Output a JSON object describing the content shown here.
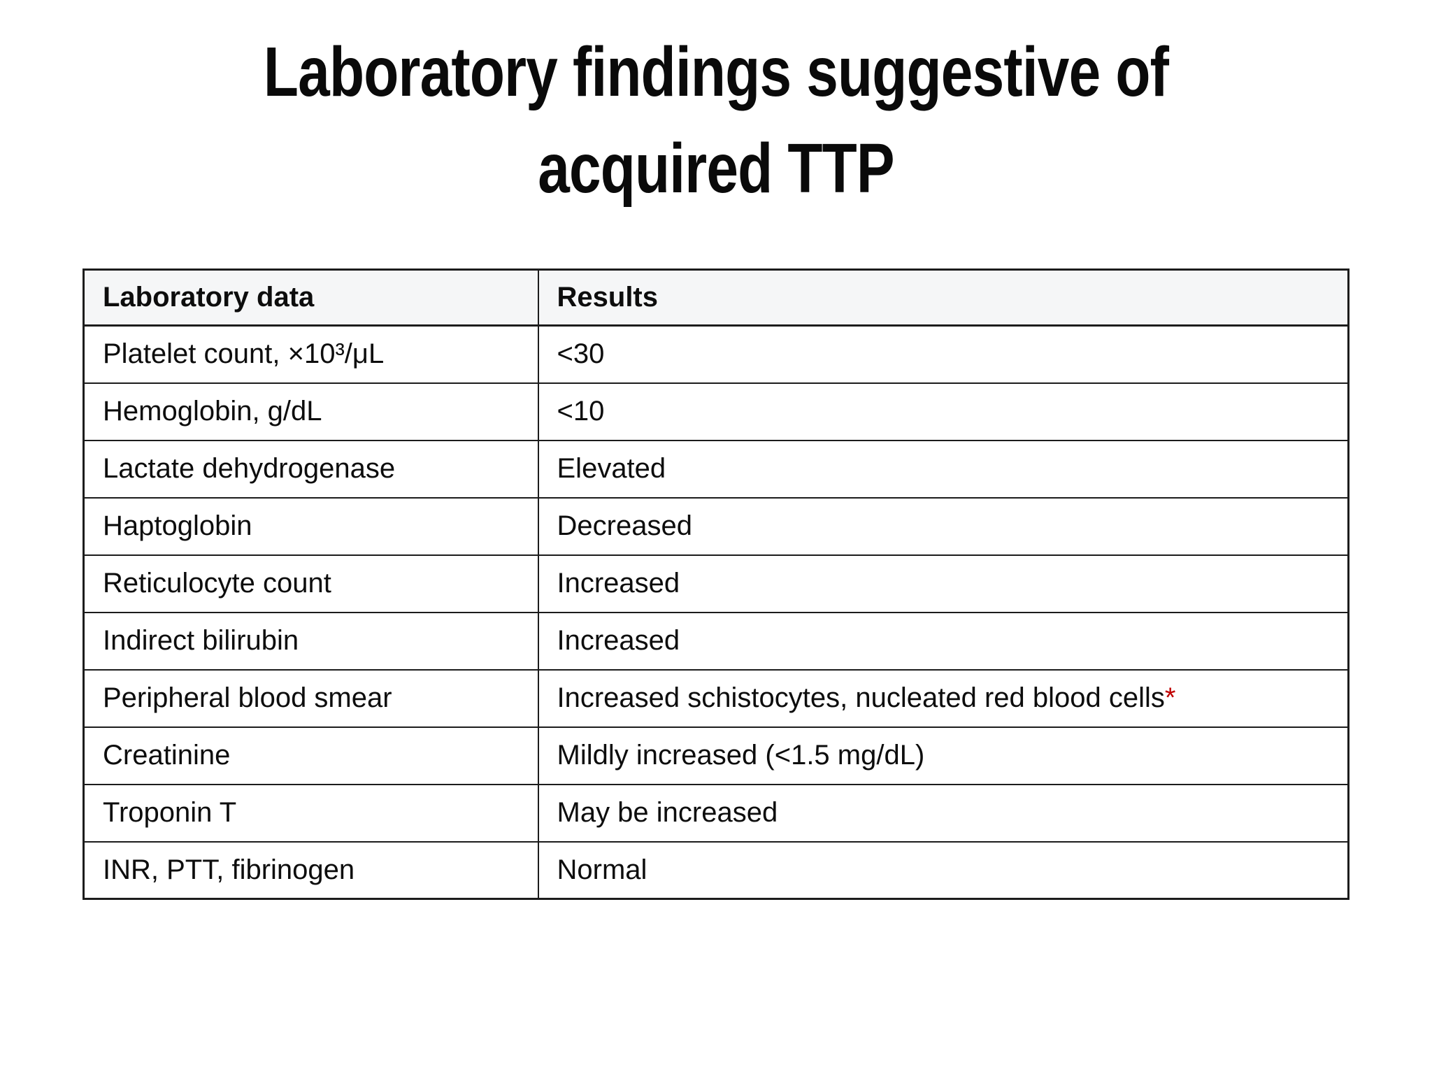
{
  "title": {
    "line1": "Laboratory findings suggestive of",
    "line2": "acquired TTP"
  },
  "table": {
    "headers": [
      "Laboratory data",
      "Results"
    ],
    "rows": [
      {
        "label": "Platelet count, ×10³/μL",
        "result": "<30"
      },
      {
        "label": "Hemoglobin, g/dL",
        "result": "<10"
      },
      {
        "label": "Lactate dehydrogenase",
        "result": "Elevated"
      },
      {
        "label": "Haptoglobin",
        "result": "Decreased"
      },
      {
        "label": "Reticulocyte count",
        "result": "Increased"
      },
      {
        "label": "Indirect bilirubin",
        "result": "Increased"
      },
      {
        "label": "Peripheral blood smear",
        "result": "Increased schistocytes, nucleated red blood cells",
        "result_note": "*"
      },
      {
        "label": "Creatinine",
        "result": "Mildly increased (<1.5 mg/dL)"
      },
      {
        "label": "Troponin T",
        "result": "May be increased"
      },
      {
        "label": "INR, PTT, fibrinogen",
        "result": "Normal"
      }
    ]
  },
  "colors": {
    "note_red": "#c00000",
    "header_background": "#f5f6f7",
    "border": "#1c1c1c",
    "text": "#0d0d0d",
    "page_background": "#ffffff"
  }
}
